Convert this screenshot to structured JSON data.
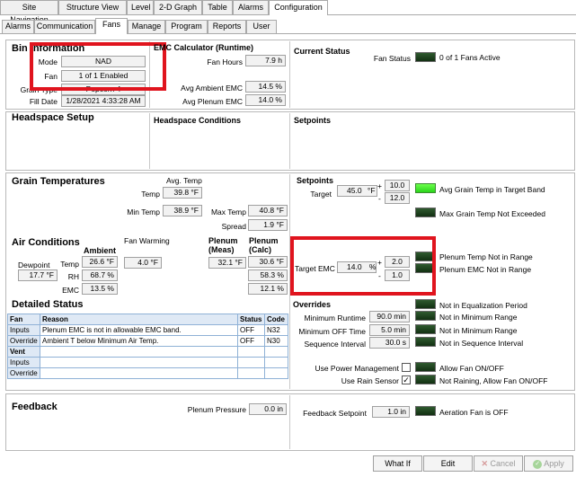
{
  "top_tabs": [
    "Site Navigation",
    "Structure View",
    "Level",
    "2-D Graph",
    "Table",
    "Alarms",
    "Configuration"
  ],
  "sub_tabs": [
    "Alarms",
    "Communication",
    "Fans",
    "Manage",
    "Program",
    "Reports",
    "User"
  ],
  "bin_info": {
    "title": "Bin Information",
    "mode_label": "Mode",
    "mode_value": "NAD",
    "fan_label": "Fan",
    "fan_value": "1 of 1 Enabled",
    "grain_type_label": "Grain Type",
    "grain_type_value": "Popcorn 4",
    "fill_date_label": "Fill Date",
    "fill_date_value": "1/28/2021 4:33:28 AM"
  },
  "emc_calc": {
    "title": "EMC Calculator (Runtime)",
    "fan_hours_label": "Fan Hours",
    "fan_hours_value": "7.9 h",
    "avg_ambient_label": "Avg Ambient EMC",
    "avg_ambient_value": "14.5 %",
    "avg_plenum_label": "Avg Plenum EMC",
    "avg_plenum_value": "14.0 %"
  },
  "current_status": {
    "title": "Current Status",
    "fan_status_label": "Fan Status",
    "fan_status_text": "0 of 1 Fans Active"
  },
  "headspace": {
    "title": "Headspace Setup",
    "conditions_label": "Headspace Conditions",
    "setpoints_label": "Setpoints"
  },
  "grain_temps": {
    "title": "Grain Temperatures",
    "avg_temp_label": "Avg. Temp",
    "temp_label": "Temp",
    "temp_value": "39.8 °F",
    "min_temp_label": "Min Temp",
    "min_temp_value": "38.9 °F",
    "max_temp_label": "Max Temp",
    "max_temp_value": "40.8 °F",
    "spread_label": "Spread",
    "spread_value": "1.9 °F"
  },
  "setpoints": {
    "title": "Setpoints",
    "target_label": "Target",
    "target_value": "45.0",
    "target_unit": "°F",
    "plus_sign": "+",
    "minus_sign": "-",
    "plus_value": "10.0",
    "minus_value": "12.0",
    "status1": "Avg Grain Temp in Target Band",
    "status2": "Max Grain Temp Not Exceeded"
  },
  "air_conditions": {
    "title": "Air Conditions",
    "ambient_label": "Ambient",
    "fan_warming_label": "Fan Warming",
    "plenum_meas_label": "Plenum (Meas)",
    "plenum_calc_label": "Plenum (Calc)",
    "dewpoint_label": "Dewpoint",
    "dewpoint_value": "17.7 °F",
    "temp_label": "Temp",
    "rh_label": "RH",
    "emc_label": "EMC",
    "ambient_temp": "26.6 °F",
    "ambient_rh": "68.7 %",
    "ambient_emc": "13.5 %",
    "fan_warming_value": "4.0 °F",
    "plenum_meas_temp": "32.1 °F",
    "plenum_calc_temp": "30.6 °F",
    "plenum_calc_rh": "58.3 %",
    "plenum_calc_emc": "12.1 %"
  },
  "target_emc": {
    "label": "Target EMC",
    "value": "14.0",
    "unit": "%",
    "plus_sign": "+",
    "minus_sign": "-",
    "plus_value": "2.0",
    "minus_value": "1.0",
    "status1": "Plenum Temp Not in Range",
    "status2": "Plenum EMC Not in Range"
  },
  "detailed_status": {
    "title": "Detailed Status",
    "headers": [
      "Fan",
      "Reason",
      "Status",
      "Code"
    ],
    "rows": [
      [
        "Inputs",
        "Plenum EMC is not in allowable EMC band.",
        "OFF",
        "N32"
      ],
      [
        "Override",
        "Ambient T below Minimum Air Temp.",
        "OFF",
        "N30"
      ],
      [
        "Vent",
        "",
        "",
        ""
      ],
      [
        "Inputs",
        "",
        "",
        ""
      ],
      [
        "Override",
        "",
        "",
        ""
      ]
    ]
  },
  "overrides": {
    "title": "Overrides",
    "min_runtime_label": "Minimum Runtime",
    "min_runtime_value": "90.0 min",
    "min_off_label": "Minimum OFF Time",
    "min_off_value": "5.0 min",
    "seq_label": "Sequence Interval",
    "seq_value": "30.0 s",
    "status1": "Not in Equalization Period",
    "status2": "Not in Minimum Range",
    "status3": "Not in Minimum Range",
    "status4": "Not in Sequence Interval",
    "power_mgmt_label": "Use Power Management",
    "power_mgmt_status": "Allow Fan ON/OFF",
    "rain_label": "Use Rain Sensor",
    "rain_check": "✓",
    "rain_status": "Not Raining, Allow Fan ON/OFF"
  },
  "feedback": {
    "title": "Feedback",
    "plenum_pressure_label": "Plenum Pressure",
    "plenum_pressure_value": "0.0 in",
    "setpoint_label": "Feedback Setpoint",
    "setpoint_value": "1.0 in",
    "status": "Aeration Fan is OFF"
  },
  "buttons": {
    "whatif": "What If",
    "edit": "Edit",
    "cancel": "Cancel",
    "apply": "Apply"
  },
  "icons": {
    "cancel": "x-icon",
    "apply": "check-circle-icon"
  },
  "colors": {
    "highlight": "#e0141e",
    "led_on": "#4cff30",
    "led_off": "#1f431f"
  }
}
